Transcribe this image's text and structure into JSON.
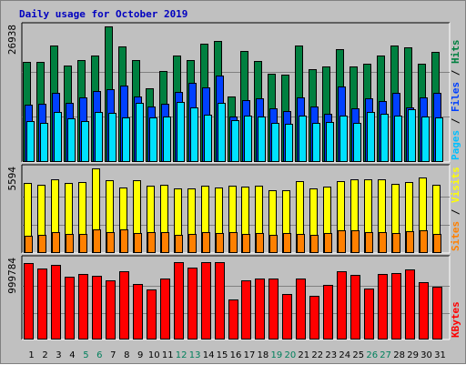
{
  "chart_data": {
    "type": "bar",
    "title": "Daily usage for October 2019",
    "categories": [
      "1",
      "2",
      "3",
      "4",
      "5",
      "6",
      "7",
      "8",
      "9",
      "10",
      "11",
      "12",
      "13",
      "14",
      "15",
      "16",
      "17",
      "18",
      "19",
      "20",
      "21",
      "22",
      "23",
      "24",
      "25",
      "26",
      "27",
      "28",
      "29",
      "30",
      "31"
    ],
    "weekend_days": [
      "5",
      "6",
      "12",
      "13",
      "19",
      "20",
      "26",
      "27"
    ],
    "colors": {
      "hits": "#008040",
      "files": "#0040ff",
      "pages": "#00e0ff",
      "visits": "#ffff00",
      "sites": "#ff8000",
      "kbytes": "#ff0000",
      "weekend_label": "#00805c",
      "title": "#0000c0"
    },
    "panels": [
      {
        "name": "requests",
        "ymax_label": "26938",
        "ylim": [
          0,
          26938
        ],
        "legend": [
          {
            "text": "Pages",
            "color": "#00c0ff"
          },
          {
            "text": " / ",
            "color": "#000000"
          },
          {
            "text": "Files",
            "color": "#0040ff"
          },
          {
            "text": " / ",
            "color": "#000000"
          },
          {
            "text": "Hits",
            "color": "#008040"
          }
        ],
        "series": [
          {
            "name": "Hits",
            "values": [
              19800,
              19800,
              23200,
              19200,
              20300,
              21100,
              26938,
              22900,
              20300,
              14700,
              18100,
              21100,
              20300,
              23500,
              24000,
              13100,
              22000,
              20000,
              17500,
              17400,
              23200,
              18500,
              18900,
              22400,
              19000,
              19500,
              21100,
              23200,
              22800,
              19600,
              21900
            ]
          },
          {
            "name": "Files",
            "values": [
              11400,
              11500,
              13700,
              11700,
              12800,
              14100,
              14500,
              15100,
              13100,
              11000,
              11500,
              14000,
              15700,
              14800,
              17100,
              9100,
              12300,
              12700,
              10600,
              10200,
              12800,
              11000,
              9500,
              15000,
              10700,
              12700,
              12200,
              13700,
              10800,
              12800,
              13700
            ]
          },
          {
            "name": "Pages",
            "values": [
              8200,
              7800,
              10000,
              8600,
              8200,
              9900,
              9700,
              8900,
              11800,
              8900,
              9100,
              12000,
              10800,
              9400,
              11800,
              8300,
              9200,
              9000,
              7800,
              7600,
              9200,
              7800,
              8000,
              9200,
              7800,
              10000,
              9600,
              9200,
              10500,
              9100,
              8900
            ]
          }
        ]
      },
      {
        "name": "visitors",
        "ymax_label": "5594",
        "ylim": [
          0,
          5594
        ],
        "legend": [
          {
            "text": "Sites",
            "color": "#ff8000"
          },
          {
            "text": " / ",
            "color": "#000000"
          },
          {
            "text": "Visits",
            "color": "#ffff00"
          }
        ],
        "series": [
          {
            "name": "Visits",
            "values": [
              4650,
              4520,
              4900,
              4610,
              4710,
              5594,
              4830,
              4310,
              4830,
              4440,
              4510,
              4260,
              4300,
              4470,
              4310,
              4460,
              4400,
              4430,
              4150,
              4140,
              4730,
              4260,
              4410,
              4740,
              4900,
              4900,
              4850,
              4550,
              4720,
              4980,
              4520
            ]
          },
          {
            "name": "Sites",
            "values": [
              1160,
              1200,
              1360,
              1250,
              1240,
              1560,
              1410,
              1570,
              1310,
              1380,
              1370,
              1210,
              1250,
              1390,
              1300,
              1390,
              1290,
              1320,
              1230,
              1320,
              1270,
              1190,
              1330,
              1510,
              1500,
              1390,
              1370,
              1320,
              1440,
              1530,
              1280
            ]
          }
        ]
      },
      {
        "name": "traffic",
        "ymax_label": "999784",
        "ylim": [
          0,
          999784
        ],
        "legend": [
          {
            "text": "KBytes",
            "color": "#ff0000"
          }
        ],
        "series": [
          {
            "name": "KBytes",
            "values": [
              960000,
              890000,
              930000,
              780000,
              820000,
              800000,
              740000,
              850000,
              690000,
              620000,
              760000,
              970000,
              900000,
              970000,
              970000,
              500000,
              740000,
              760000,
              760000,
              570000,
              760000,
              550000,
              680000,
              850000,
              810000,
              640000,
              820000,
              830000,
              870000,
              720000,
              660000
            ]
          }
        ]
      }
    ]
  }
}
